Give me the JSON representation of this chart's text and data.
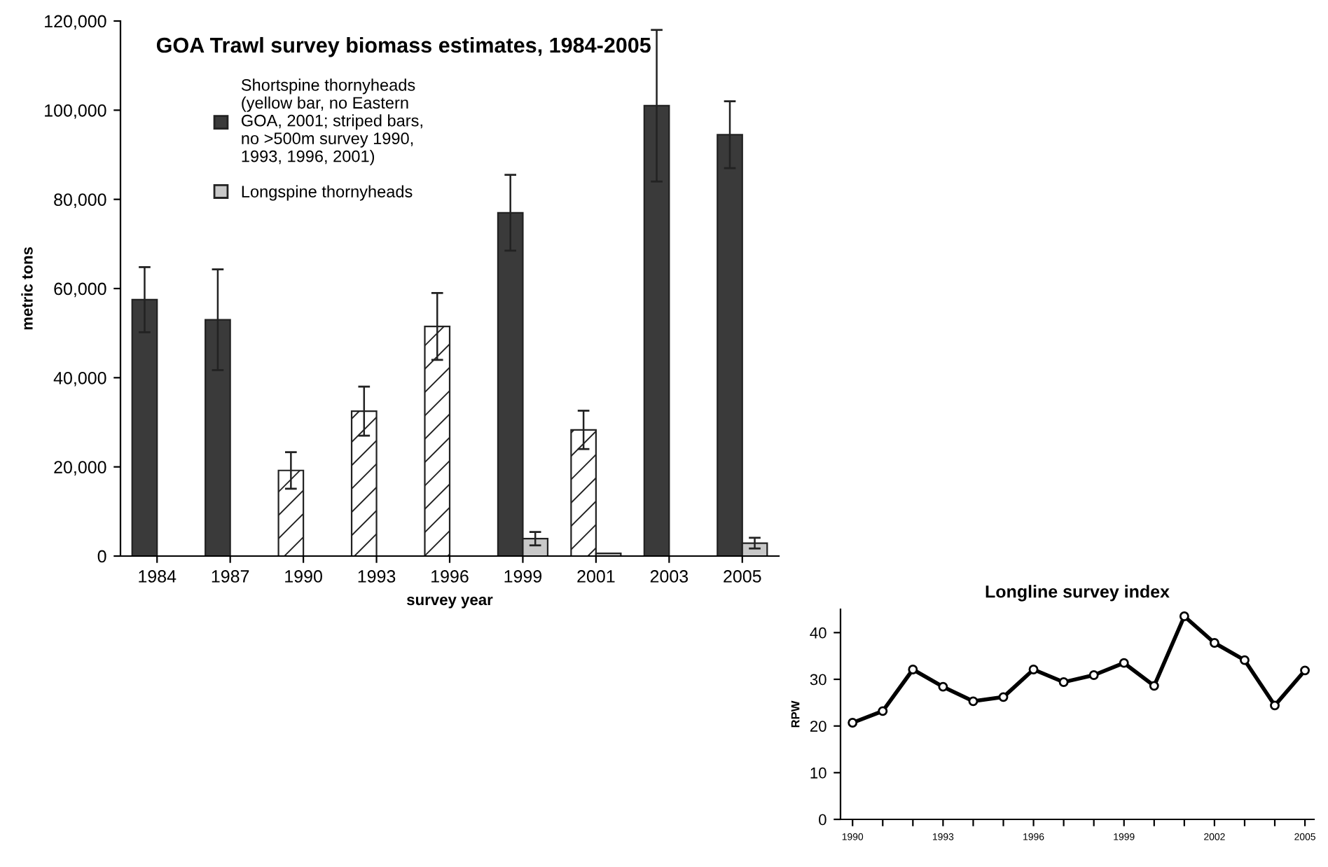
{
  "chart_data": [
    {
      "type": "bar",
      "title": "GOA Trawl survey biomass estimates, 1984-2005",
      "xlabel": "survey year",
      "ylabel": "metric tons",
      "categories": [
        "1984",
        "1987",
        "1990",
        "1993",
        "1996",
        "1999",
        "2001",
        "2003",
        "2005"
      ],
      "series": [
        {
          "name": "Shortspine thornyheads\n(yellow bar, no Eastern\nGOA, 2001; striped bars,\nno >500m survey 1990,\n1993, 1996, 2001)",
          "color": "#3a3a3a",
          "colors": [
            "#3a3a3a",
            "#3a3a3a",
            "#ffffff",
            "#ffffff",
            "#ffffff",
            "#3a3a3a",
            "#ffffff",
            "#3a3a3a",
            "#3a3a3a"
          ],
          "values": [
            57500,
            53000,
            19200,
            32500,
            51500,
            77000,
            28300,
            101000,
            94500
          ],
          "errors": [
            7300,
            11300,
            4100,
            5500,
            7500,
            8500,
            4300,
            17000,
            7500
          ]
        },
        {
          "name": "Longspine thornyheads",
          "color": "#c8c8c8",
          "values": [
            null,
            null,
            null,
            null,
            null,
            3900,
            600,
            null,
            2900
          ],
          "errors": [
            null,
            null,
            null,
            null,
            null,
            1500,
            null,
            null,
            1200
          ]
        }
      ],
      "ylim": [
        0,
        120000
      ],
      "yticks": [
        0,
        {
          "value": 20000,
          "label": "20,000"
        },
        {
          "value": 40000,
          "label": "40,000"
        },
        {
          "value": 60000,
          "label": "60,000"
        },
        {
          "value": 80000,
          "label": "80,000"
        },
        {
          "value": 100000,
          "label": "100,000"
        },
        {
          "value": 120000,
          "label": "120,000"
        }
      ],
      "grid": false,
      "legend": "top left"
    },
    {
      "type": "line",
      "title": "Longline survey index",
      "ylabel": "RPW",
      "x": [
        1990,
        1991,
        1992,
        1993,
        1994,
        1995,
        1996,
        1997,
        1998,
        1999,
        2000,
        2001,
        2002,
        2003,
        2004,
        2005
      ],
      "series": [
        {
          "color": "#000000",
          "values": [
            20.7,
            23.2,
            32.1,
            28.4,
            25.3,
            26.2,
            32.1,
            29.4,
            30.9,
            33.5,
            28.6,
            43.5,
            37.8,
            34.1,
            24.4,
            31.9
          ]
        }
      ],
      "xlim": [
        1989.6,
        2005.3
      ],
      "xticks": [
        1990,
        {
          "value": 1991,
          "label": null
        },
        {
          "value": 1992,
          "label": null
        },
        1993,
        {
          "value": 1994,
          "label": null
        },
        {
          "value": 1995,
          "label": null
        },
        1996,
        {
          "value": 1997,
          "label": null
        },
        {
          "value": 1998,
          "label": null
        },
        1999,
        {
          "value": 2000,
          "label": null
        },
        {
          "value": 2001,
          "label": null
        },
        2002,
        {
          "value": 2003,
          "label": null
        },
        {
          "value": 2004,
          "label": null
        },
        2005
      ],
      "ylim": [
        0,
        45
      ],
      "yticks": [
        0,
        10,
        20,
        30,
        40
      ],
      "grid": false,
      "marker": "circle",
      "line_style": "solid"
    }
  ]
}
